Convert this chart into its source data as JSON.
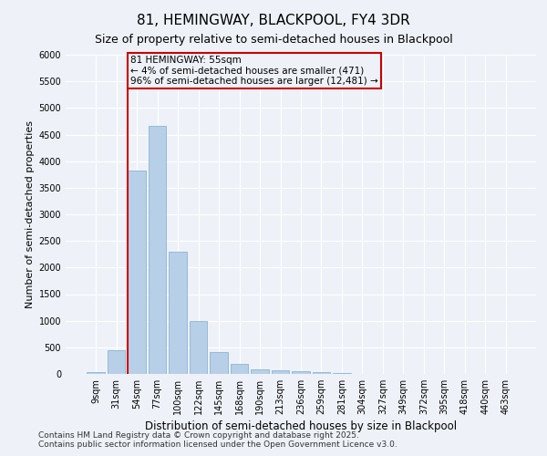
{
  "title": "81, HEMINGWAY, BLACKPOOL, FY4 3DR",
  "subtitle": "Size of property relative to semi-detached houses in Blackpool",
  "xlabel": "Distribution of semi-detached houses by size in Blackpool",
  "ylabel": "Number of semi-detached properties",
  "categories": [
    "9sqm",
    "31sqm",
    "54sqm",
    "77sqm",
    "100sqm",
    "122sqm",
    "145sqm",
    "168sqm",
    "190sqm",
    "213sqm",
    "236sqm",
    "259sqm",
    "281sqm",
    "304sqm",
    "327sqm",
    "349sqm",
    "372sqm",
    "395sqm",
    "418sqm",
    "440sqm",
    "463sqm"
  ],
  "values": [
    30,
    450,
    3820,
    4670,
    2290,
    1000,
    420,
    190,
    90,
    65,
    50,
    30,
    10,
    5,
    3,
    2,
    1,
    1,
    0,
    0,
    0
  ],
  "bar_color": "#b8cfe8",
  "bar_edge_color": "#7aacd4",
  "subject_label": "81 HEMINGWAY: 55sqm",
  "smaller_text": "← 4% of semi-detached houses are smaller (471)",
  "larger_text": "96% of semi-detached houses are larger (12,481) →",
  "annotation_box_color": "#cc0000",
  "red_line_x": 1.575,
  "ylim": [
    0,
    6000
  ],
  "yticks": [
    0,
    500,
    1000,
    1500,
    2000,
    2500,
    3000,
    3500,
    4000,
    4500,
    5000,
    5500,
    6000
  ],
  "footer_line1": "Contains HM Land Registry data © Crown copyright and database right 2025.",
  "footer_line2": "Contains public sector information licensed under the Open Government Licence v3.0.",
  "bg_color": "#eef2f8",
  "grid_color": "#ffffff",
  "title_fontsize": 11,
  "subtitle_fontsize": 9,
  "ylabel_fontsize": 8,
  "xlabel_fontsize": 8.5,
  "tick_fontsize": 7,
  "footer_fontsize": 6.5,
  "ann_fontsize": 7.5
}
